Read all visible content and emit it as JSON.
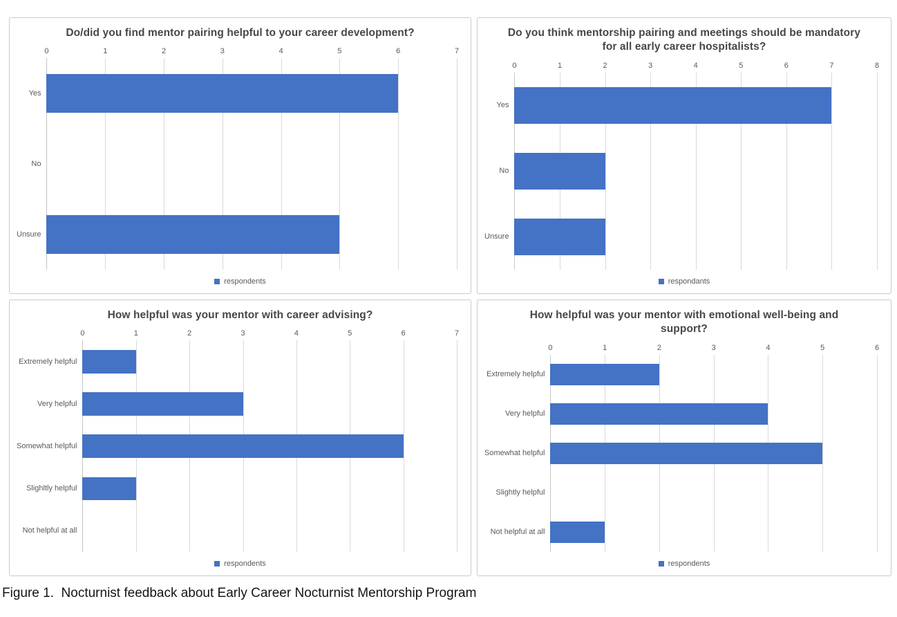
{
  "figure_caption": "Figure 1.  Nocturnist feedback about Early Career Nocturnist Mentorship Program",
  "colors": {
    "bar": "#4472C4",
    "gridline": "#D9D9D9",
    "axis_text": "#595959",
    "title_text": "#474747",
    "panel_border": "#C9CACB"
  },
  "chart_data": [
    {
      "type": "bar",
      "orientation": "horizontal",
      "title": "Do/did you find mentor pairing helpful to your career development?",
      "categories": [
        "Yes",
        "No",
        "Unsure"
      ],
      "values": [
        6,
        0,
        5
      ],
      "series_label": "respondents",
      "xlabel": "",
      "ylabel": "",
      "xlim": [
        0,
        7
      ],
      "xticks": [
        0,
        1,
        2,
        3,
        4,
        5,
        6,
        7
      ],
      "grid": true,
      "axis_position": "top",
      "legend_position": "bottom"
    },
    {
      "type": "bar",
      "orientation": "horizontal",
      "title": "Do you think mentorship pairing and meetings should be mandatory for all early career hospitalists?",
      "categories": [
        "Yes",
        "No",
        "Unsure"
      ],
      "values": [
        7,
        2,
        2
      ],
      "series_label": "respondants",
      "xlabel": "",
      "ylabel": "",
      "xlim": [
        0,
        8
      ],
      "xticks": [
        0,
        1,
        2,
        3,
        4,
        5,
        6,
        7,
        8
      ],
      "grid": true,
      "axis_position": "top",
      "legend_position": "bottom"
    },
    {
      "type": "bar",
      "orientation": "horizontal",
      "title": "How helpful was your mentor with career advising?",
      "categories": [
        "Extremely helpful",
        "Very helpful",
        "Somewhat helpful",
        "Slighltly helpful",
        "Not helpful at all"
      ],
      "values": [
        1,
        3,
        6,
        1,
        0
      ],
      "series_label": "respondents",
      "xlabel": "",
      "ylabel": "",
      "xlim": [
        0,
        7
      ],
      "xticks": [
        0,
        1,
        2,
        3,
        4,
        5,
        6,
        7
      ],
      "grid": true,
      "axis_position": "top",
      "legend_position": "bottom"
    },
    {
      "type": "bar",
      "orientation": "horizontal",
      "title": "How helpful was your mentor with emotional well-being and support?",
      "categories": [
        "Extremely helpful",
        "Very helpful",
        "Somewhat helpful",
        "Slightly helpful",
        "Not helpful at all"
      ],
      "values": [
        2,
        4,
        5,
        0,
        1
      ],
      "series_label": "respondents",
      "xlabel": "",
      "ylabel": "",
      "xlim": [
        0,
        6
      ],
      "xticks": [
        0,
        1,
        2,
        3,
        4,
        5,
        6
      ],
      "grid": true,
      "axis_position": "top",
      "legend_position": "bottom"
    }
  ]
}
